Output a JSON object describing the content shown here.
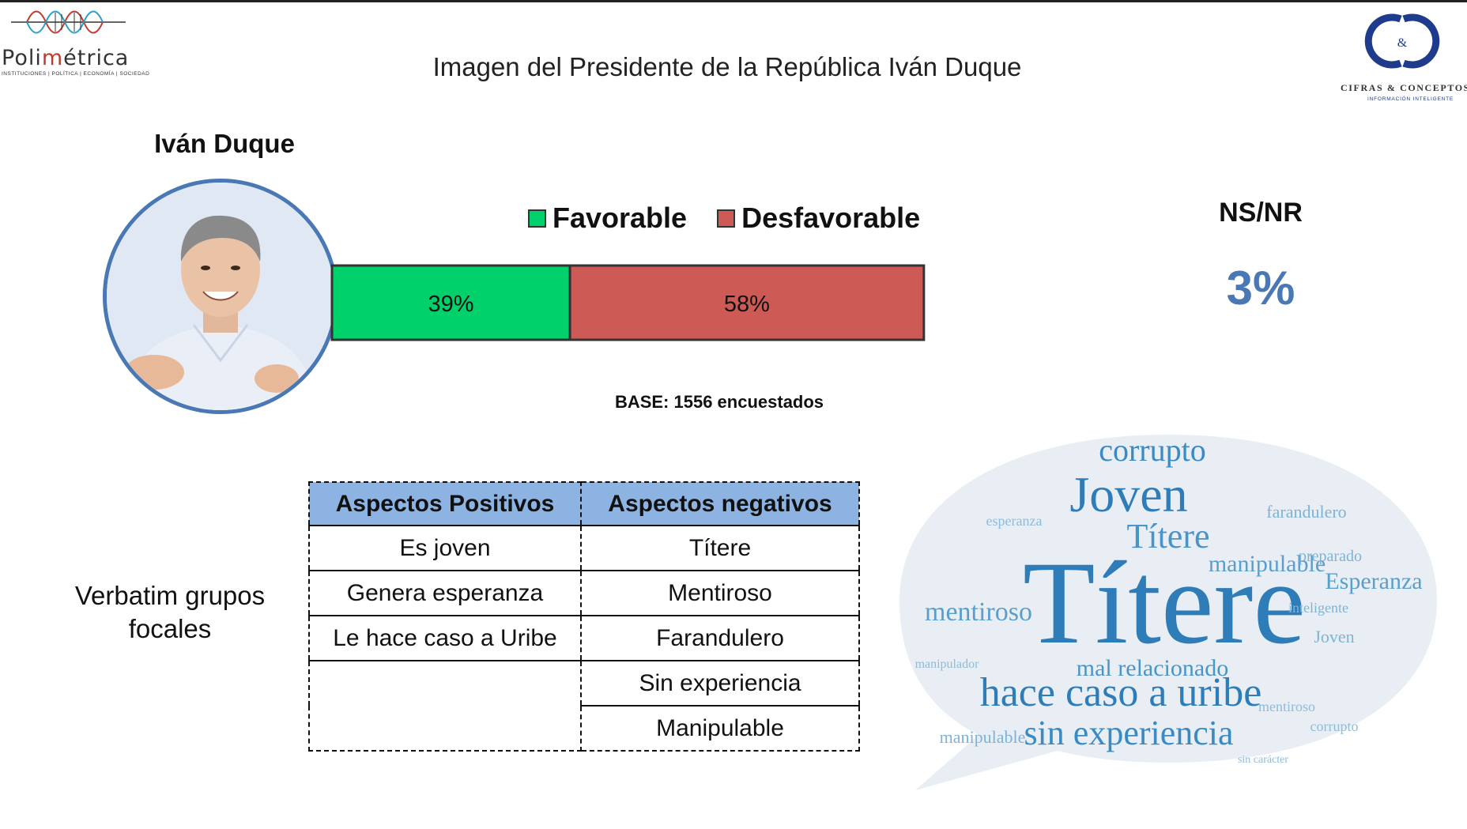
{
  "brand_left": {
    "name_prefix": "Poli",
    "name_accent": "m",
    "name_suffix": "étrica",
    "tagline": "INSTITUCIONES | POLÍTICA | ECONOMÍA | SOCIEDAD"
  },
  "brand_right": {
    "name": "CIFRAS & CONCEPTOS",
    "subtitle": "INFORMACIÓN INTELIGENTE",
    "monogram_mark": "&"
  },
  "title": "Imagen del Presidente de la República Iván Duque",
  "person_name": "Iván Duque",
  "colors": {
    "favorable": "#00d16a",
    "desfavorable": "#cd5a55",
    "header_fill": "#8db3e2",
    "accent_blue": "#4a78b4"
  },
  "chart_data": {
    "type": "bar",
    "orientation": "horizontal-stacked",
    "series": [
      {
        "name": "Favorable",
        "values": [
          39
        ],
        "label": "39%"
      },
      {
        "name": "Desfavorable",
        "values": [
          58
        ],
        "label": "58%"
      }
    ],
    "extra": {
      "label": "NS/NR",
      "value": 3,
      "display": "3%"
    },
    "note": "BASE: 1556 encuestados"
  },
  "verbatim_label": "Verbatim grupos focales",
  "aspects_table": {
    "headers": [
      "Aspectos Positivos",
      "Aspectos negativos"
    ],
    "positives": [
      "Es joven",
      "Genera esperanza",
      "Le hace caso a Uribe"
    ],
    "negatives": [
      "Títere",
      "Mentiroso",
      "Farandulero",
      "Sin experiencia",
      "Manipulable"
    ]
  },
  "word_cloud": {
    "words": [
      {
        "text": "Títere",
        "weight": 10
      },
      {
        "text": "Joven",
        "weight": 6
      },
      {
        "text": "hace caso a uribe",
        "weight": 5
      },
      {
        "text": "corrupto",
        "weight": 4
      },
      {
        "text": "sin experiencia",
        "weight": 4
      },
      {
        "text": "Títere",
        "weight": 4
      },
      {
        "text": "manipulable",
        "weight": 3
      },
      {
        "text": "mal relacionado",
        "weight": 3
      },
      {
        "text": "mentiroso",
        "weight": 3
      },
      {
        "text": "Esperanza",
        "weight": 3
      },
      {
        "text": "farandulero",
        "weight": 2
      },
      {
        "text": "preparado",
        "weight": 2
      },
      {
        "text": "inteligente",
        "weight": 2
      },
      {
        "text": "esperanza",
        "weight": 2
      },
      {
        "text": "sin carácter",
        "weight": 1
      },
      {
        "text": "manipulador",
        "weight": 1
      },
      {
        "text": "Joven",
        "weight": 2
      },
      {
        "text": "manipulable",
        "weight": 2
      },
      {
        "text": "mentiroso",
        "weight": 1
      },
      {
        "text": "corrupto",
        "weight": 1
      }
    ]
  }
}
